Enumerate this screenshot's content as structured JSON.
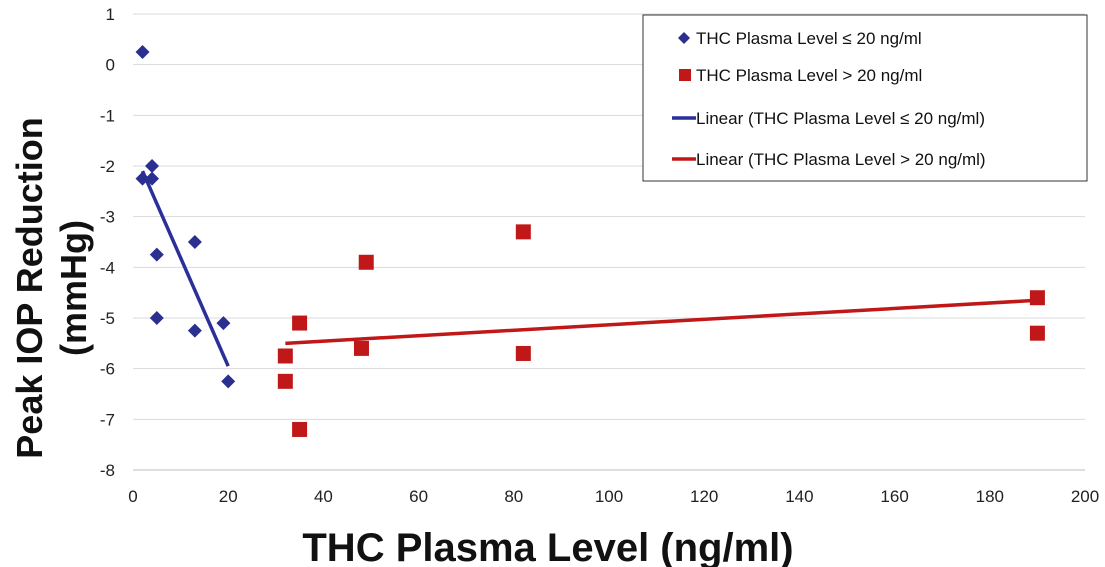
{
  "chart_data": {
    "type": "scatter",
    "title": "",
    "xlabel": "THC Plasma Level (ng/ml)",
    "ylabel_lines": [
      "Peak IOP Reduction",
      "(mmHg)"
    ],
    "xlim": [
      0,
      200
    ],
    "ylim": [
      -8,
      1
    ],
    "xticks": [
      0,
      20,
      40,
      60,
      80,
      100,
      120,
      140,
      160,
      180,
      200
    ],
    "yticks": [
      1,
      0,
      -1,
      -2,
      -3,
      -4,
      -5,
      -6,
      -7,
      -8
    ],
    "grid": "horizontal",
    "legend_position": "top-right",
    "series": [
      {
        "name": "THC Plasma Level ≤ 20 ng/ml",
        "marker": "diamond",
        "color": "#2b2f8f",
        "points": [
          [
            2,
            0.25
          ],
          [
            2,
            -2.25
          ],
          [
            4,
            -2.0
          ],
          [
            4,
            -2.25
          ],
          [
            5,
            -3.75
          ],
          [
            5,
            -5.0
          ],
          [
            13,
            -3.5
          ],
          [
            13,
            -5.25
          ],
          [
            19,
            -5.1
          ],
          [
            20,
            -6.25
          ]
        ]
      },
      {
        "name": "THC Plasma Level > 20 ng/ml",
        "marker": "square",
        "color": "#c01818",
        "points": [
          [
            32,
            -5.75
          ],
          [
            32,
            -6.25
          ],
          [
            35,
            -5.1
          ],
          [
            35,
            -7.2
          ],
          [
            48,
            -5.6
          ],
          [
            49,
            -3.9
          ],
          [
            82,
            -3.3
          ],
          [
            82,
            -5.7
          ],
          [
            190,
            -4.6
          ],
          [
            190,
            -5.3
          ]
        ]
      },
      {
        "name": "Linear (THC Plasma Level ≤ 20 ng/ml)",
        "marker": "line",
        "color": "#2b2f9a",
        "points": [
          [
            2,
            -2.1
          ],
          [
            20,
            -5.95
          ]
        ]
      },
      {
        "name": "Linear (THC Plasma Level > 20 ng/ml)",
        "marker": "line",
        "color": "#c01818",
        "points": [
          [
            32,
            -5.5
          ],
          [
            190,
            -4.65
          ]
        ]
      }
    ]
  }
}
